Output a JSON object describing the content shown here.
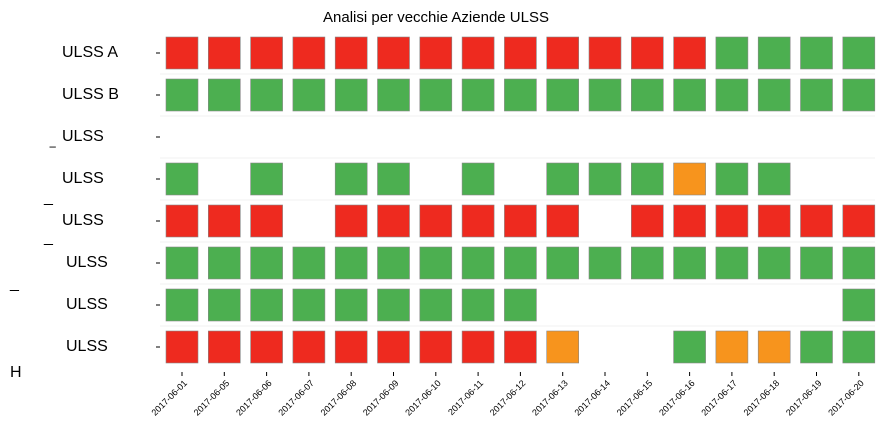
{
  "chart_data": {
    "type": "status-grid",
    "title": "Analisi per vecchie Aziende ULSS",
    "rows": [
      "ULSS A",
      "ULSS B",
      "ULSS",
      "ULSS",
      "ULSS",
      "ULSS",
      "ULSS",
      "ULSS"
    ],
    "columns": [
      "2017-06-01",
      "2017-06-05",
      "2017-06-06",
      "2017-06-07",
      "2017-06-08",
      "2017-06-09",
      "2017-06-10",
      "2017-06-11",
      "2017-06-12",
      "2017-06-13",
      "2017-06-14",
      "2017-06-15",
      "2017-06-16",
      "2017-06-17",
      "2017-06-18",
      "2017-06-19",
      "2017-06-20"
    ],
    "colors": {
      "R": "#ee2a1f",
      "G": "#4caf50",
      "O": "#f7941d"
    },
    "cells": [
      [
        "R",
        "R",
        "R",
        "R",
        "R",
        "R",
        "R",
        "R",
        "R",
        "R",
        "R",
        "R",
        "R",
        "G",
        "G",
        "G",
        "G"
      ],
      [
        "G",
        "G",
        "G",
        "G",
        "G",
        "G",
        "G",
        "G",
        "G",
        "G",
        "G",
        "G",
        "G",
        "G",
        "G",
        "G",
        "G"
      ],
      [
        null,
        null,
        null,
        null,
        null,
        null,
        null,
        null,
        null,
        null,
        null,
        null,
        null,
        null,
        null,
        null,
        null
      ],
      [
        "G",
        null,
        "G",
        null,
        "G",
        "G",
        null,
        "G",
        null,
        "G",
        "G",
        "G",
        "O",
        "G",
        "G",
        null,
        null
      ],
      [
        "R",
        "R",
        "R",
        null,
        "R",
        "R",
        "R",
        "R",
        "R",
        "R",
        null,
        "R",
        "R",
        "R",
        "R",
        "R",
        "R"
      ],
      [
        "G",
        "G",
        "G",
        "G",
        "G",
        "G",
        "G",
        "G",
        "G",
        "G",
        "G",
        "G",
        "G",
        "G",
        "G",
        "G",
        "G"
      ],
      [
        "G",
        "G",
        "G",
        "G",
        "G",
        "G",
        "G",
        "G",
        "G",
        null,
        null,
        null,
        null,
        null,
        null,
        null,
        "G"
      ],
      [
        "R",
        "R",
        "R",
        "R",
        "R",
        "R",
        "R",
        "R",
        "R",
        "O",
        null,
        null,
        "G",
        "O",
        "O",
        "G",
        "G"
      ]
    ],
    "fragments": [
      "‾",
      "_",
      "_",
      "_",
      "H"
    ]
  }
}
